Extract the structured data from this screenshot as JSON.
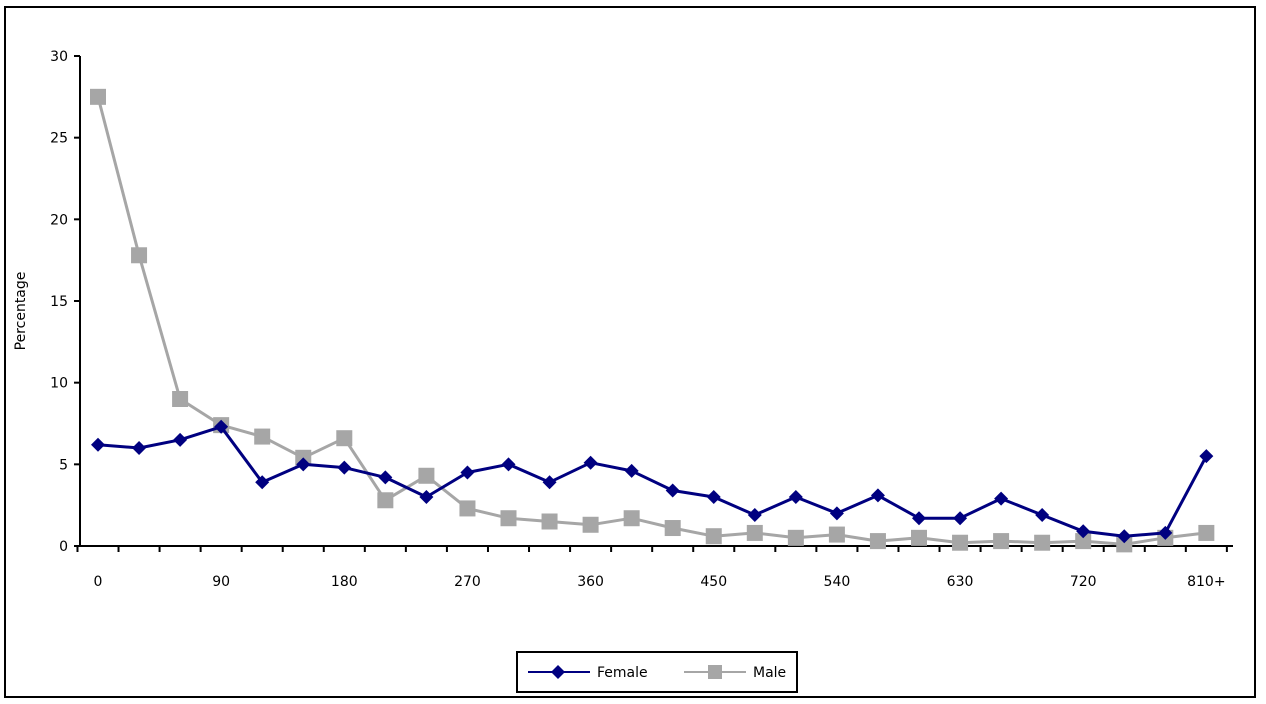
{
  "chart_data": {
    "type": "line",
    "xlabel": "",
    "ylabel": "Percentage",
    "ylim": [
      0,
      30
    ],
    "yticks": [
      0,
      5,
      10,
      15,
      20,
      25,
      30
    ],
    "x": [
      0,
      30,
      60,
      90,
      120,
      150,
      180,
      210,
      240,
      270,
      300,
      330,
      360,
      390,
      420,
      450,
      480,
      510,
      540,
      570,
      600,
      630,
      660,
      690,
      720,
      750,
      780,
      810
    ],
    "xtick_labels": [
      "0",
      "90",
      "180",
      "270",
      "360",
      "450",
      "540",
      "630",
      "720",
      "810+"
    ],
    "legend_position": "bottom",
    "grid": false,
    "series": [
      {
        "name": "Female",
        "color": "#000080",
        "marker": "diamond",
        "values": [
          6.2,
          6.0,
          6.5,
          7.3,
          3.9,
          5.0,
          4.8,
          4.2,
          3.0,
          4.5,
          5.0,
          3.9,
          5.1,
          4.6,
          3.4,
          3.0,
          1.9,
          3.0,
          2.0,
          3.1,
          1.7,
          1.7,
          2.9,
          1.9,
          0.9,
          0.6,
          0.8,
          5.5
        ]
      },
      {
        "name": "Male",
        "color": "#a6a6a6",
        "marker": "square",
        "values": [
          27.5,
          17.8,
          9.0,
          7.4,
          6.7,
          5.4,
          6.6,
          2.8,
          4.3,
          2.3,
          1.7,
          1.5,
          1.3,
          1.7,
          1.1,
          0.6,
          0.8,
          0.5,
          0.7,
          0.3,
          0.5,
          0.2,
          0.3,
          0.2,
          0.3,
          0.1,
          0.5,
          0.8
        ]
      }
    ]
  }
}
